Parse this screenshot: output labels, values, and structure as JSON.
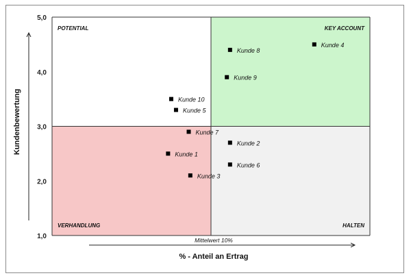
{
  "chart_data": {
    "type": "scatter",
    "xlabel": "% - Anteil an Ertrag",
    "ylabel": "Kundenbewertung",
    "x_note": "Mittelwert 10%",
    "yticks": [
      "1,0",
      "2,0",
      "3,0",
      "4,0",
      "5,0"
    ],
    "ylim": [
      1.0,
      5.0
    ],
    "xlim": [
      0.0,
      20.0
    ],
    "x_divider": 10.0,
    "y_divider": 3.0,
    "quadrants": {
      "top_left": {
        "label": "POTENTIAL",
        "color": "#ffffff"
      },
      "top_right": {
        "label": "KEY ACCOUNT",
        "color": "#ccf5cc"
      },
      "bottom_left": {
        "label": "VERHANDLUNG",
        "color": "#f7c7c7"
      },
      "bottom_right": {
        "label": "HALTEN",
        "color": "#f1f1f1"
      }
    },
    "points": [
      {
        "label": "Kunde 1",
        "x": 7.3,
        "y": 2.5
      },
      {
        "label": "Kunde 2",
        "x": 11.2,
        "y": 2.7
      },
      {
        "label": "Kunde 3",
        "x": 8.7,
        "y": 2.1
      },
      {
        "label": "Kunde 4",
        "x": 16.5,
        "y": 4.5
      },
      {
        "label": "Kunde 5",
        "x": 7.8,
        "y": 3.3
      },
      {
        "label": "Kunde 6",
        "x": 11.2,
        "y": 2.3
      },
      {
        "label": "Kunde 7",
        "x": 8.6,
        "y": 2.9
      },
      {
        "label": "Kunde 8",
        "x": 11.2,
        "y": 4.4
      },
      {
        "label": "Kunde 9",
        "x": 11.0,
        "y": 3.9
      },
      {
        "label": "Kunde 10",
        "x": 7.5,
        "y": 3.5
      }
    ]
  }
}
